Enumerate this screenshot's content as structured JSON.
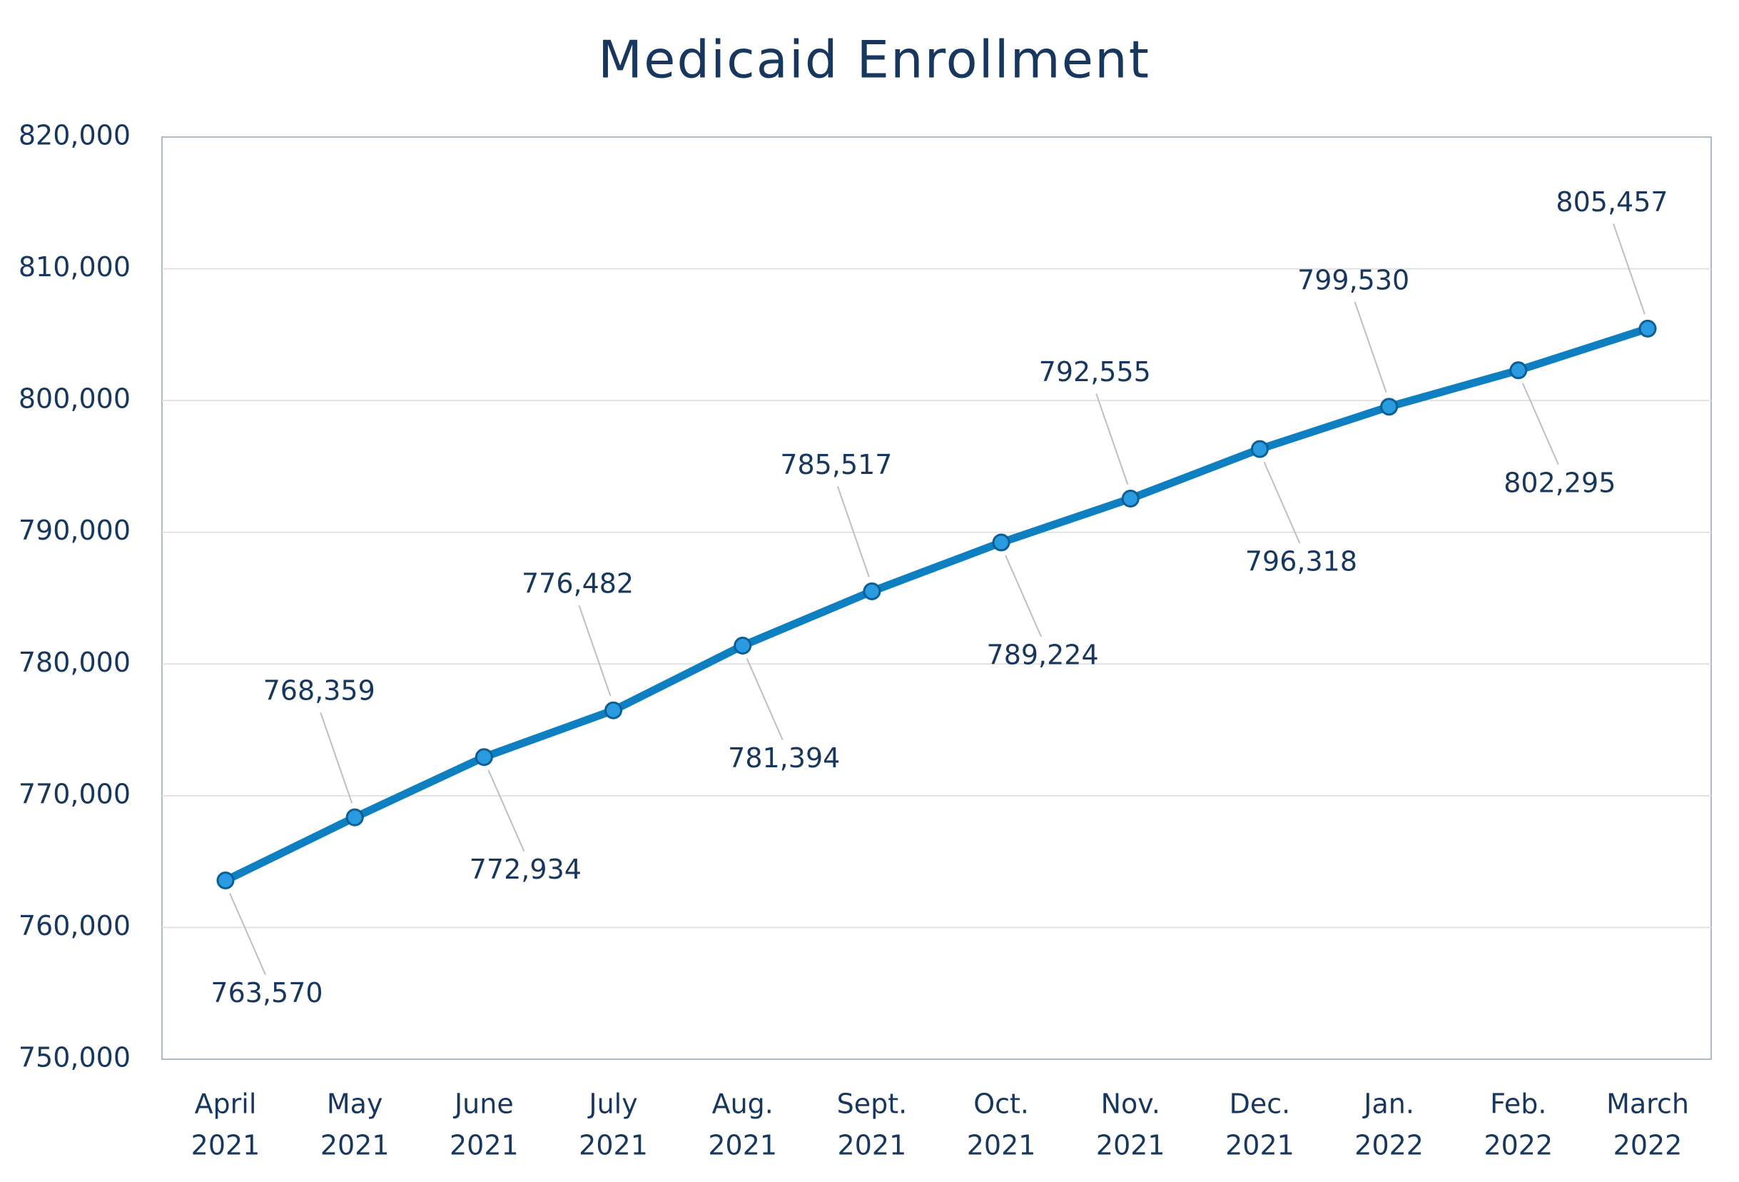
{
  "chart_data": {
    "type": "line",
    "title": "Medicaid Enrollment",
    "categories": [
      [
        "April",
        "2021"
      ],
      [
        "May",
        "2021"
      ],
      [
        "June",
        "2021"
      ],
      [
        "July",
        "2021"
      ],
      [
        "Aug.",
        "2021"
      ],
      [
        "Sept.",
        "2021"
      ],
      [
        "Oct.",
        "2021"
      ],
      [
        "Nov.",
        "2021"
      ],
      [
        "Dec.",
        "2021"
      ],
      [
        "Jan.",
        "2022"
      ],
      [
        "Feb.",
        "2022"
      ],
      [
        "March",
        "2022"
      ]
    ],
    "values": [
      763570,
      768359,
      772934,
      776482,
      781394,
      785517,
      789224,
      792555,
      796318,
      799530,
      802295,
      805457
    ],
    "value_labels": [
      "763,570",
      "768,359",
      "772,934",
      "776,482",
      "781,394",
      "785,517",
      "789,224",
      "792,555",
      "796,318",
      "799,530",
      "802,295",
      "805,457"
    ],
    "color": "#0e7fc0",
    "ylim": [
      750000,
      820000
    ],
    "yticks": [
      {
        "value": 750000,
        "label": "750,000"
      },
      {
        "value": 760000,
        "label": "760,000"
      },
      {
        "value": 770000,
        "label": "770,000"
      },
      {
        "value": 780000,
        "label": "780,000"
      },
      {
        "value": 790000,
        "label": "790,000"
      },
      {
        "value": 800000,
        "label": "800,000"
      },
      {
        "value": 810000,
        "label": "810,000"
      },
      {
        "value": 820000,
        "label": "820,000"
      }
    ],
    "grid": true
  }
}
